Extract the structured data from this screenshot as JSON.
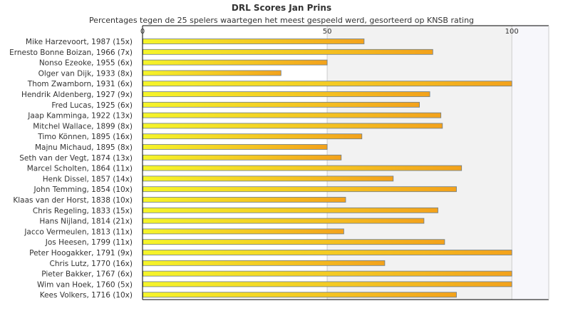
{
  "chart_data": {
    "type": "bar",
    "orientation": "horizontal",
    "title": "DRL Scores Jan Prins",
    "subtitle": "Percentages tegen de 25 spelers waartegen het meest gespeeld werd, gesorteerd op KNSB rating",
    "xlabel": "",
    "ylabel": "",
    "xlim": [
      0,
      110
    ],
    "x_ticks": [
      0,
      50,
      100
    ],
    "grid": true,
    "legend": "none",
    "colors": {
      "bar_start": "#f5f52a",
      "bar_end": "#f3a21c",
      "bar_border": "#6b7d8c",
      "plot_shade": "#f2f2f2",
      "right_band": "#f7f7fb",
      "gridline": "#cccccc",
      "axis": "#000000"
    },
    "categories": [
      "Mike Harzevoort, 1987 (15x)",
      "Ernesto Bonne Boizan, 1966 (7x)",
      "Nonso Ezeoke, 1955 (6x)",
      "Olger van Dijk, 1933 (8x)",
      "Thom Zwamborn, 1931 (6x)",
      "Hendrik Aldenberg, 1927 (9x)",
      "Fred Lucas, 1925 (6x)",
      "Jaap Kamminga, 1922 (13x)",
      "Mitchel Wallace, 1899 (8x)",
      "Timo Können, 1895 (16x)",
      "Majnu Michaud, 1895 (8x)",
      "Seth van der Vegt, 1874 (13x)",
      "Marcel Scholten, 1864 (11x)",
      "Henk Dissel, 1857 (14x)",
      "John Temming, 1854 (10x)",
      "Klaas van der Horst, 1838 (10x)",
      "Chris Regeling, 1833 (15x)",
      "Hans Nijland, 1814 (21x)",
      "Jacco Vermeulen, 1813 (11x)",
      "Jos Heesen, 1799 (11x)",
      "Peter Hoogakker, 1791 (9x)",
      "Chris Lutz, 1770 (16x)",
      "Pieter Bakker, 1767 (6x)",
      "Wim van Hoek, 1760 (5x)",
      "Kees Volkers, 1716 (10x)"
    ],
    "values": [
      60,
      78.6,
      50,
      37.5,
      100,
      77.8,
      75,
      80.8,
      81.2,
      59.4,
      50,
      53.8,
      86.4,
      67.9,
      85,
      55,
      80,
      76.2,
      54.5,
      81.8,
      100,
      65.6,
      100,
      100,
      85
    ]
  }
}
